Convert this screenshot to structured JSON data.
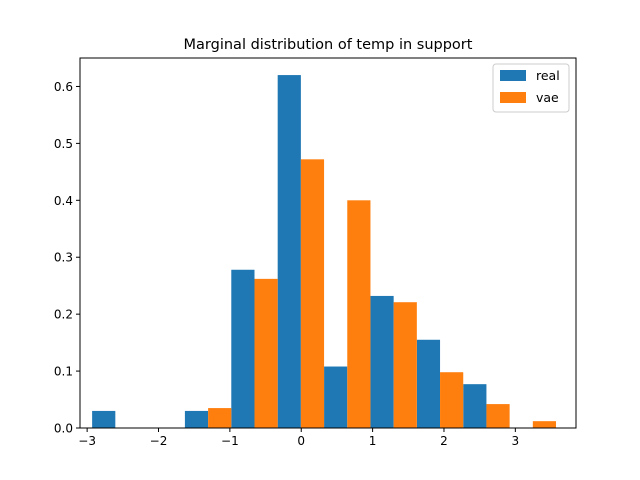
{
  "chart_data": {
    "type": "bar",
    "title": "Marginal distribution of temp in support",
    "xlabel": "",
    "ylabel": "",
    "xlim": [
      -3.1,
      3.85
    ],
    "ylim": [
      0,
      0.65
    ],
    "xticks": [
      -3,
      -2,
      -1,
      0,
      1,
      2,
      3
    ],
    "xtick_labels": [
      "−3",
      "−2",
      "−1",
      "0",
      "1",
      "2",
      "3"
    ],
    "yticks": [
      0.0,
      0.1,
      0.2,
      0.3,
      0.4,
      0.5,
      0.6
    ],
    "ytick_labels": [
      "0.0",
      "0.1",
      "0.2",
      "0.3",
      "0.4",
      "0.5",
      "0.6"
    ],
    "bin_edges": [
      -2.93,
      -2.28,
      -1.63,
      -0.98,
      -0.33,
      0.32,
      0.97,
      1.62,
      2.27,
      2.92,
      3.57
    ],
    "grid": false,
    "legend_position": "top-right",
    "series": [
      {
        "name": "real",
        "color": "#1f77b4",
        "values": [
          0.03,
          0.0,
          0.03,
          0.278,
          0.62,
          0.108,
          0.232,
          0.155,
          0.077,
          0.0,
          0.016
        ]
      },
      {
        "name": "vae",
        "color": "#ff7f0e",
        "values": [
          0.0,
          0.0,
          0.035,
          0.262,
          0.472,
          0.4,
          0.221,
          0.098,
          0.042,
          0.012,
          0.0
        ]
      }
    ]
  }
}
